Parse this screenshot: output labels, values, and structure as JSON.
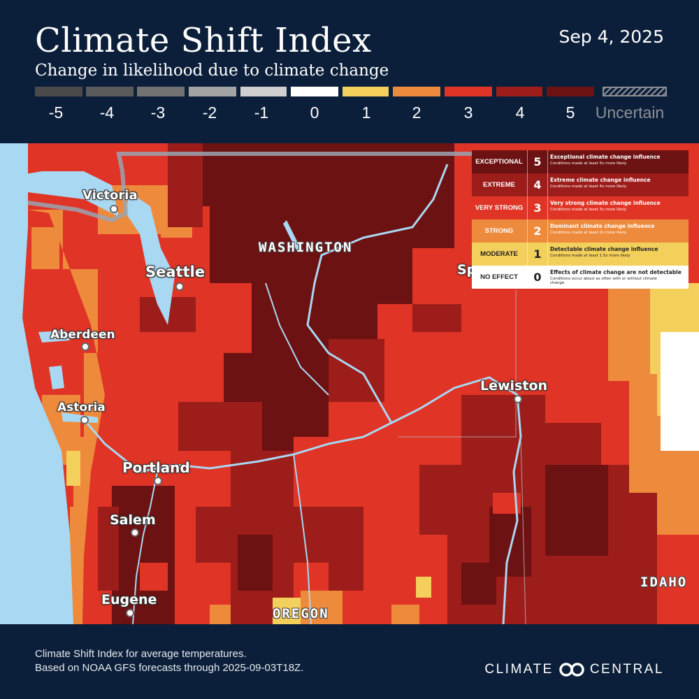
{
  "header": {
    "title": "Climate Shift Index",
    "subtitle": "Change in likelihood due to climate change",
    "date": "Sep 4, 2025"
  },
  "scale": {
    "items": [
      {
        "label": "-5",
        "color": "#4a4a4a"
      },
      {
        "label": "-4",
        "color": "#5a5a5a"
      },
      {
        "label": "-3",
        "color": "#727272"
      },
      {
        "label": "-2",
        "color": "#a3a3a3"
      },
      {
        "label": "-1",
        "color": "#cfcfcf"
      },
      {
        "label": "0",
        "color": "#ffffff"
      },
      {
        "label": "1",
        "color": "#f3cf5b"
      },
      {
        "label": "2",
        "color": "#ee8a3c"
      },
      {
        "label": "3",
        "color": "#df3426"
      },
      {
        "label": "4",
        "color": "#9c1d1a"
      },
      {
        "label": "5",
        "color": "#6d1212"
      }
    ],
    "uncertain_label": "Uncertain"
  },
  "map": {
    "cities": [
      {
        "name": "Victoria"
      },
      {
        "name": "Seattle"
      },
      {
        "name": "Aberdeen"
      },
      {
        "name": "Astoria"
      },
      {
        "name": "Portland"
      },
      {
        "name": "Salem"
      },
      {
        "name": "Eugene"
      },
      {
        "name": "Lewiston"
      },
      {
        "name": "Sp"
      }
    ],
    "states": [
      {
        "name": "WASHINGTON"
      },
      {
        "name": "OREGON"
      },
      {
        "name": "IDAHO"
      }
    ]
  },
  "legend": {
    "rows": [
      {
        "name": "EXCEPTIONAL",
        "value": "5",
        "title": "Exceptional climate change influence",
        "detail": "Conditions made at least 5x more likely",
        "color": "#6d1212"
      },
      {
        "name": "EXTREME",
        "value": "4",
        "title": "Extreme climate change influence",
        "detail": "Conditions made at least 4x more likely",
        "color": "#9c1d1a"
      },
      {
        "name": "VERY STRONG",
        "value": "3",
        "title": "Very strong climate change influence",
        "detail": "Conditions made at least 3x more likely",
        "color": "#df3426"
      },
      {
        "name": "STRONG",
        "value": "2",
        "title": "Dominant climate change influence",
        "detail": "Conditions made at least 2x more likely",
        "color": "#ee8a3c"
      },
      {
        "name": "MODERATE",
        "value": "1",
        "title": "Detectable climate change influence",
        "detail": "Conditions made at least 1.5x more likely",
        "color": "#f3cf5b"
      },
      {
        "name": "NO EFFECT",
        "value": "0",
        "title": "Effects of climate change are not detectable",
        "detail": "Conditions occur about as often with or without climate change",
        "color": "#ffffff"
      }
    ]
  },
  "footer": {
    "line1": "Climate Shift Index for average temperatures.",
    "line2": "Based on NOAA GFS forecasts through 2025-09-03T18Z.",
    "brand_left": "CLIMATE",
    "brand_right": "CENTRAL"
  }
}
